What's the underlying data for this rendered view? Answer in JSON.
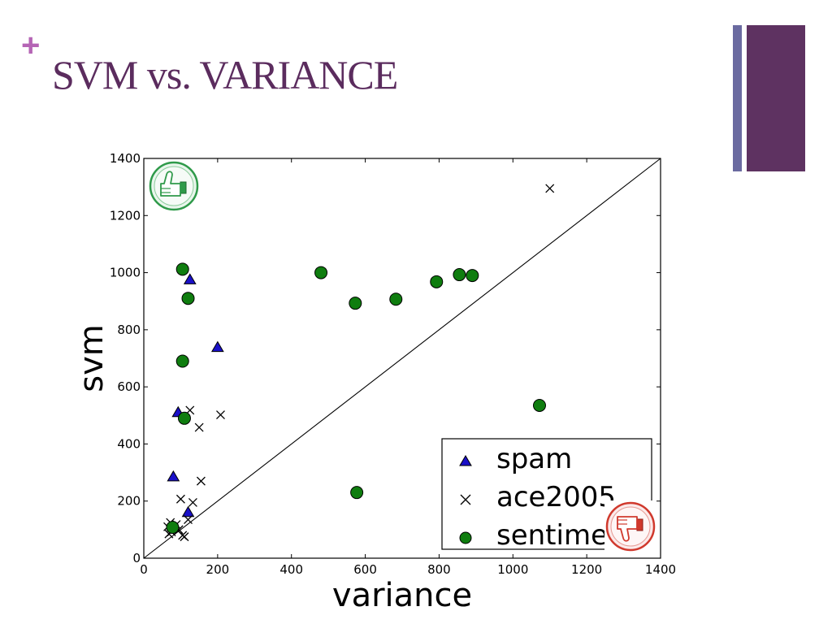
{
  "slide": {
    "plus": "+",
    "title": "SVM vs. VARIANCE"
  },
  "colors": {
    "title": "#5b2c5e",
    "plus": "#b565b5",
    "deco_bar_thin": "#6a6aa0",
    "deco_bar_wide": "#5e3261",
    "spam": "#1a10c8",
    "sentiment": "#0f7d0f",
    "ace2005": "#000000"
  },
  "icons": {
    "thumbs_up": "thumbs-up-icon",
    "thumbs_down": "thumbs-down-icon"
  },
  "chart_data": {
    "type": "scatter",
    "xlabel": "variance",
    "ylabel": "svm",
    "xlim": [
      0,
      1400
    ],
    "ylim": [
      0,
      1400
    ],
    "xticks": [
      0,
      200,
      400,
      600,
      800,
      1000,
      1200,
      1400
    ],
    "yticks": [
      0,
      200,
      400,
      600,
      800,
      1000,
      1200,
      1400
    ],
    "grid": false,
    "legend_position": "bottom-right",
    "reference_line": {
      "from": [
        0,
        0
      ],
      "to": [
        1400,
        1400
      ]
    },
    "series": [
      {
        "name": "spam",
        "marker": "triangle",
        "points": [
          [
            125,
            975
          ],
          [
            200,
            738
          ],
          [
            93,
            510
          ],
          [
            80,
            285
          ],
          [
            120,
            160
          ],
          [
            80,
            110
          ]
        ]
      },
      {
        "name": "ace2005",
        "marker": "x",
        "points": [
          [
            1100,
            1295
          ],
          [
            125,
            518
          ],
          [
            208,
            502
          ],
          [
            150,
            458
          ],
          [
            155,
            270
          ],
          [
            100,
            207
          ],
          [
            133,
            195
          ],
          [
            72,
            125
          ],
          [
            88,
            118
          ],
          [
            120,
            135
          ],
          [
            65,
            110
          ],
          [
            95,
            100
          ],
          [
            75,
            92
          ],
          [
            68,
            85
          ],
          [
            105,
            80
          ],
          [
            110,
            75
          ]
        ]
      },
      {
        "name": "sentiment",
        "marker": "circle",
        "points": [
          [
            105,
            1012
          ],
          [
            120,
            910
          ],
          [
            105,
            690
          ],
          [
            110,
            490
          ],
          [
            480,
            1000
          ],
          [
            573,
            893
          ],
          [
            683,
            907
          ],
          [
            793,
            968
          ],
          [
            855,
            993
          ],
          [
            890,
            990
          ],
          [
            1072,
            535
          ],
          [
            577,
            230
          ],
          [
            78,
            108
          ]
        ]
      }
    ]
  }
}
